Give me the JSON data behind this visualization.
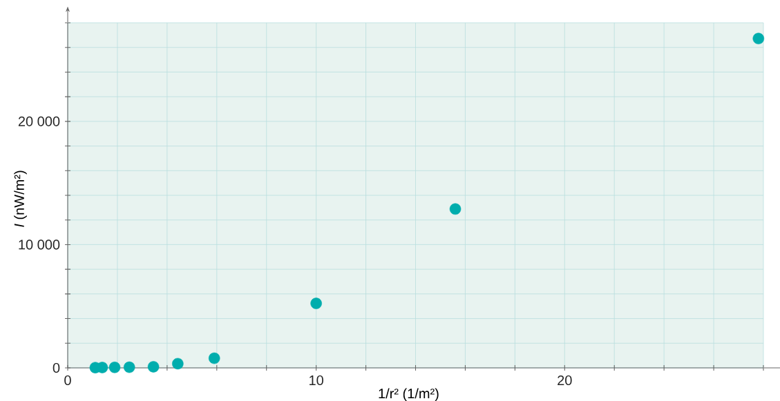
{
  "chart_data": {
    "type": "scatter",
    "xlabel": "1/r² (1/m²)",
    "ylabel": "*I* (nW/m²)",
    "series": [
      {
        "color": "#00adad",
        "x": [
          1.11,
          1.39,
          1.89,
          2.48,
          3.45,
          4.43,
          5.9,
          10.0,
          15.6,
          27.8
        ],
        "values": [
          20,
          30,
          40,
          50,
          90,
          340,
          780,
          5230,
          12890,
          26720
        ]
      }
    ],
    "xlim": [
      0,
      28
    ],
    "ylim": [
      0,
      28000
    ],
    "xticks": [
      0,
      {
        "value": 2,
        "label": null
      },
      {
        "value": 4,
        "label": null
      },
      {
        "value": 6,
        "label": null
      },
      {
        "value": 8,
        "label": null
      },
      10,
      {
        "value": 12,
        "label": null
      },
      {
        "value": 14,
        "label": null
      },
      {
        "value": 16,
        "label": null
      },
      {
        "value": 18,
        "label": null
      },
      20,
      {
        "value": 22,
        "label": null
      },
      {
        "value": 24,
        "label": null
      },
      {
        "value": 26,
        "label": null
      },
      {
        "value": 28,
        "label": null
      }
    ],
    "yticks": [
      0,
      {
        "value": 2000,
        "label": null
      },
      {
        "value": 4000,
        "label": null
      },
      {
        "value": 6000,
        "label": null
      },
      {
        "value": 8000,
        "label": null
      },
      {
        "value": 10000,
        "label": "10 000"
      },
      {
        "value": 12000,
        "label": null
      },
      {
        "value": 14000,
        "label": null
      },
      {
        "value": 16000,
        "label": null
      },
      {
        "value": 18000,
        "label": null
      },
      {
        "value": 20000,
        "label": "20 000"
      },
      {
        "value": 22000,
        "label": null
      },
      {
        "value": 24000,
        "label": null
      },
      {
        "value": 26000,
        "label": null
      },
      {
        "value": 28000,
        "label": null
      }
    ],
    "grid": true
  }
}
